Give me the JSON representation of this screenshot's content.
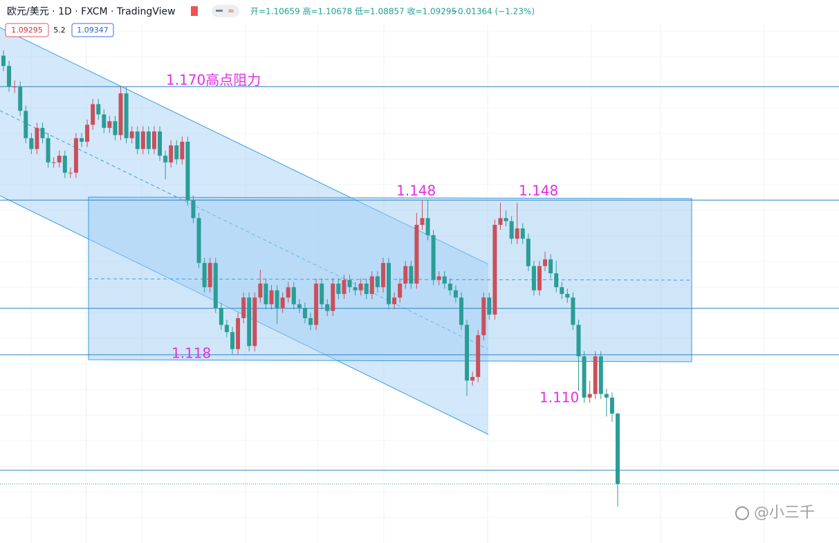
{
  "chart_data": {
    "type": "candlestick",
    "title": "欧元/美元 · 1D · FXCM · TradingView",
    "ohlc_text": "开=1.10659 高=1.10678 低=1.08857 收=1.09295",
    "change_text": "−0.01364 (−1.23%)",
    "badges": [
      "1.09295",
      "5.2",
      "1.09347"
    ],
    "annotations": [
      "1.170高点阻力",
      "1.148",
      "1.148",
      "1.118",
      "1.110"
    ],
    "watermark": "@小三千",
    "up_color": "#c9505b",
    "down_color": "#2a9d96",
    "level_color": "#2f7fc1",
    "annotation_color": "#e62ee6",
    "grid": true,
    "ylim": [
      1.0815,
      1.1821
    ],
    "levels": [
      1.17,
      1.148,
      1.127,
      1.118,
      1.0956
    ],
    "open": [
      1.176,
      1.174,
      1.17,
      1.17,
      1.1653,
      1.16,
      1.1579,
      1.162,
      1.16,
      1.1553,
      1.1553,
      1.1566,
      1.1533,
      1.1533,
      1.16,
      1.1593,
      1.1626,
      1.1666,
      1.1646,
      1.162,
      1.1633,
      1.1606,
      1.1687,
      1.16,
      1.1613,
      1.1579,
      1.1613,
      1.1579,
      1.1613,
      1.1566,
      1.1553,
      1.1586,
      1.1559,
      1.1593,
      1.1479,
      1.1445,
      1.1358,
      1.1311,
      1.1358,
      1.1271,
      1.1238,
      1.1224,
      1.1191,
      1.1251,
      1.1291,
      1.1197,
      1.1291,
      1.1318,
      1.1278,
      1.1305,
      1.1271,
      1.1291,
      1.1311,
      1.1278,
      1.1271,
      1.1251,
      1.1238,
      1.1318,
      1.1278,
      1.1265,
      1.1318,
      1.1298,
      1.1325,
      1.1311,
      1.1305,
      1.1318,
      1.1298,
      1.1332,
      1.1311,
      1.1358,
      1.1278,
      1.1291,
      1.1318,
      1.1352,
      1.1318,
      1.1432,
      1.1445,
      1.1412,
      1.1325,
      1.1332,
      1.1318,
      1.1305,
      1.1291,
      1.1238,
      1.113,
      1.1137,
      1.1218,
      1.1291,
      1.1258,
      1.1432,
      1.1445,
      1.1439,
      1.1405,
      1.1425,
      1.1405,
      1.1352,
      1.1305,
      1.1352,
      1.1365,
      1.1338,
      1.1311,
      1.1298,
      1.1291,
      1.1238,
      1.1177,
      1.1097,
      1.1104,
      1.1177,
      1.1104,
      1.1097,
      1.10659
    ],
    "high": [
      1.177,
      1.175,
      1.1712,
      1.171,
      1.1663,
      1.161,
      1.163,
      1.163,
      1.161,
      1.1563,
      1.1576,
      1.1576,
      1.1543,
      1.161,
      1.161,
      1.1636,
      1.1676,
      1.1676,
      1.1656,
      1.1643,
      1.1643,
      1.17,
      1.17,
      1.1623,
      1.1623,
      1.1623,
      1.1623,
      1.1623,
      1.1623,
      1.1576,
      1.1596,
      1.1596,
      1.1603,
      1.1603,
      1.1489,
      1.1455,
      1.1368,
      1.1368,
      1.1368,
      1.1281,
      1.1248,
      1.1234,
      1.1261,
      1.1301,
      1.1301,
      1.1301,
      1.1345,
      1.1328,
      1.1315,
      1.1315,
      1.1301,
      1.1321,
      1.1321,
      1.1288,
      1.1281,
      1.1261,
      1.1328,
      1.1328,
      1.1288,
      1.1328,
      1.1328,
      1.1335,
      1.1335,
      1.1321,
      1.1328,
      1.1328,
      1.1342,
      1.1342,
      1.1368,
      1.1368,
      1.1301,
      1.1328,
      1.1362,
      1.1362,
      1.1455,
      1.148,
      1.148,
      1.1422,
      1.1342,
      1.1342,
      1.1328,
      1.1315,
      1.1301,
      1.1248,
      1.1147,
      1.1228,
      1.1301,
      1.1301,
      1.1442,
      1.1475,
      1.146,
      1.1449,
      1.1475,
      1.1435,
      1.1415,
      1.1362,
      1.1362,
      1.138,
      1.1375,
      1.1362,
      1.1321,
      1.1308,
      1.1301,
      1.1248,
      1.1187,
      1.113,
      1.1187,
      1.1187,
      1.1114,
      1.1107,
      1.10678
    ],
    "low": [
      1.173,
      1.169,
      1.1688,
      1.1643,
      1.159,
      1.1569,
      1.1569,
      1.159,
      1.1543,
      1.1543,
      1.1543,
      1.1523,
      1.1523,
      1.1523,
      1.1583,
      1.1583,
      1.1616,
      1.1636,
      1.161,
      1.161,
      1.1596,
      1.1596,
      1.159,
      1.159,
      1.1569,
      1.1569,
      1.1569,
      1.1569,
      1.1556,
      1.152,
      1.1543,
      1.1549,
      1.1549,
      1.1469,
      1.1435,
      1.1348,
      1.1301,
      1.1301,
      1.1261,
      1.1228,
      1.1214,
      1.1181,
      1.1181,
      1.1241,
      1.1187,
      1.1187,
      1.1281,
      1.1268,
      1.1268,
      1.124,
      1.1261,
      1.1281,
      1.1268,
      1.1261,
      1.1241,
      1.1228,
      1.1228,
      1.1268,
      1.1255,
      1.1255,
      1.1288,
      1.1288,
      1.1301,
      1.1295,
      1.1295,
      1.1288,
      1.1288,
      1.1301,
      1.1301,
      1.1268,
      1.1268,
      1.1281,
      1.1308,
      1.1308,
      1.1308,
      1.1422,
      1.1402,
      1.1315,
      1.1315,
      1.1308,
      1.1295,
      1.1281,
      1.1228,
      1.11,
      1.112,
      1.1127,
      1.1208,
      1.1248,
      1.1248,
      1.1422,
      1.1429,
      1.1395,
      1.1395,
      1.1395,
      1.1342,
      1.1295,
      1.1295,
      1.1342,
      1.1328,
      1.1301,
      1.1288,
      1.1281,
      1.1228,
      1.111,
      1.1087,
      1.1087,
      1.1094,
      1.1094,
      1.106,
      1.105,
      1.08857
    ],
    "close": [
      1.174,
      1.17,
      1.17,
      1.1653,
      1.16,
      1.1579,
      1.162,
      1.16,
      1.1553,
      1.1553,
      1.1566,
      1.1533,
      1.1533,
      1.16,
      1.1593,
      1.1626,
      1.1666,
      1.1646,
      1.162,
      1.1633,
      1.1606,
      1.1687,
      1.16,
      1.1613,
      1.1579,
      1.1613,
      1.1579,
      1.1613,
      1.1566,
      1.1553,
      1.1586,
      1.1559,
      1.1593,
      1.1479,
      1.1445,
      1.1358,
      1.1311,
      1.1358,
      1.1271,
      1.1238,
      1.1224,
      1.1191,
      1.1251,
      1.1291,
      1.1197,
      1.1291,
      1.1318,
      1.1278,
      1.1305,
      1.1271,
      1.1291,
      1.1311,
      1.1278,
      1.1271,
      1.1251,
      1.1238,
      1.1318,
      1.1278,
      1.1265,
      1.1318,
      1.1298,
      1.1325,
      1.1311,
      1.1305,
      1.1318,
      1.1298,
      1.1332,
      1.1311,
      1.1358,
      1.1278,
      1.1291,
      1.1318,
      1.1352,
      1.1318,
      1.1432,
      1.1445,
      1.1412,
      1.1325,
      1.1332,
      1.1318,
      1.1305,
      1.1291,
      1.1238,
      1.113,
      1.1137,
      1.1218,
      1.1291,
      1.1258,
      1.1432,
      1.1445,
      1.1439,
      1.1405,
      1.1425,
      1.1405,
      1.1352,
      1.1305,
      1.1352,
      1.1365,
      1.1338,
      1.1311,
      1.1298,
      1.1291,
      1.1238,
      1.1177,
      1.1097,
      1.1104,
      1.1177,
      1.1104,
      1.1097,
      1.10659,
      1.09295
    ]
  }
}
